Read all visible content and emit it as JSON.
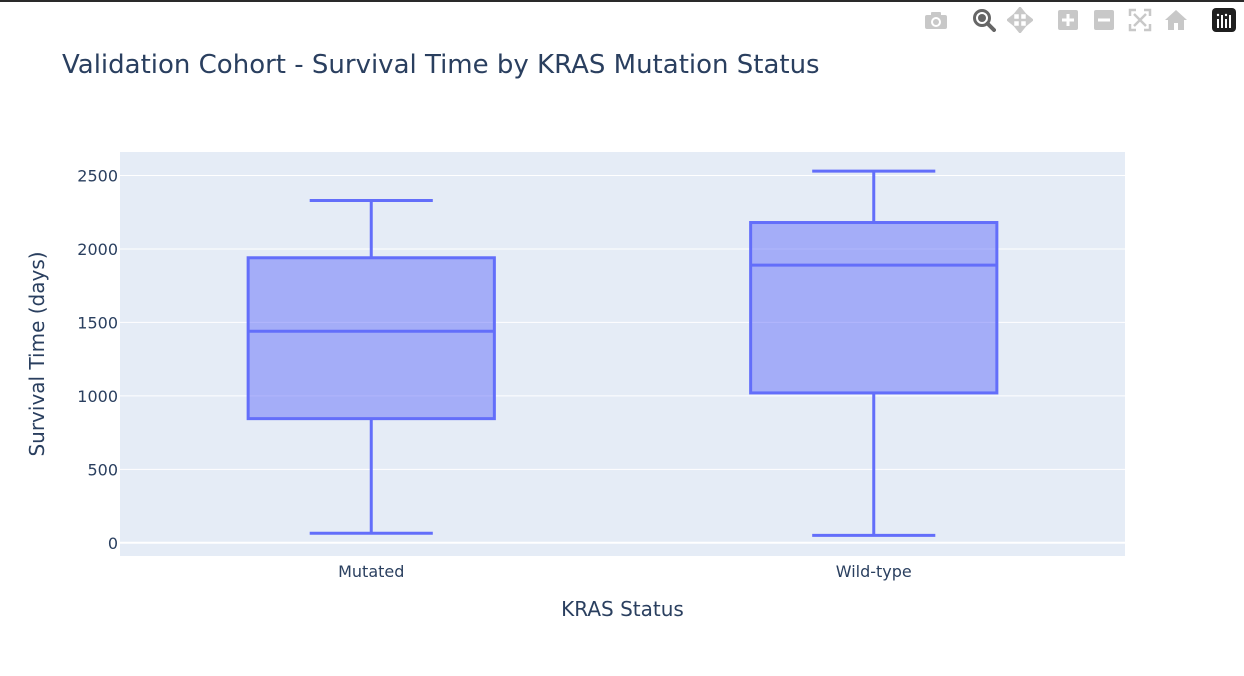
{
  "chart_data": {
    "type": "box",
    "title": "Validation Cohort - Survival Time by KRAS Mutation Status",
    "xlabel": "KRAS Status",
    "ylabel": "Survival Time (days)",
    "ylim": [
      -90,
      2660
    ],
    "yticks": [
      0,
      500,
      1000,
      1500,
      2000,
      2500
    ],
    "ytick_labels": [
      "0",
      "500",
      "1000",
      "1500",
      "2000",
      "2500"
    ],
    "categories": [
      "Mutated",
      "Wild-type"
    ],
    "boxes": [
      {
        "category": "Mutated",
        "min": 65,
        "q1": 845,
        "median": 1440,
        "q3": 1940,
        "max": 2330
      },
      {
        "category": "Wild-type",
        "min": 50,
        "q1": 1020,
        "median": 1890,
        "q3": 2180,
        "max": 2530
      }
    ],
    "colors": {
      "box_line": "#636efa",
      "box_fill": "#636efa",
      "plot_bg": "#e5ecf6",
      "grid": "#ffffff",
      "text": "#2a3f5f"
    },
    "grid": true,
    "legend": "none"
  },
  "modebar": {
    "buttons": [
      "camera-icon",
      "zoom-icon",
      "pan-icon",
      "zoom-in-icon",
      "zoom-out-icon",
      "autoscale-icon",
      "home-icon",
      "plotly-logo-icon"
    ]
  }
}
